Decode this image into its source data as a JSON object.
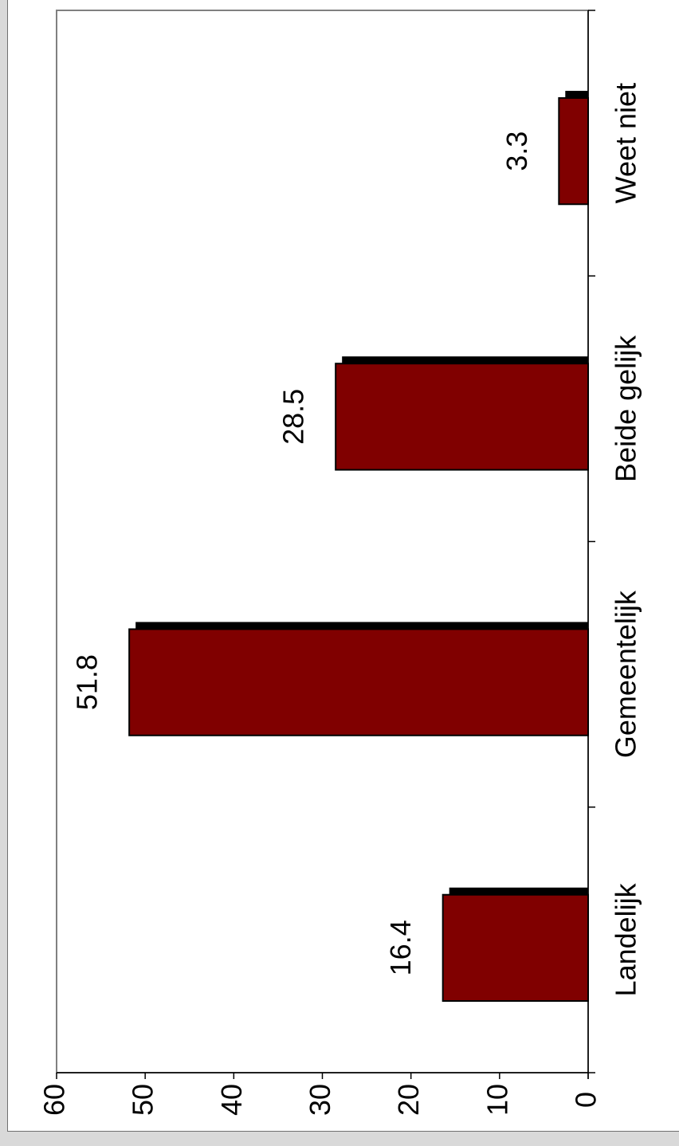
{
  "chart_data": {
    "type": "bar",
    "orientation": "rotated-90-clockwise",
    "categories": [
      "Landelijk",
      "Gemeentelijk",
      "Beide gelijk",
      "Weet niet"
    ],
    "values": [
      16.4,
      51.8,
      28.5,
      3.3
    ],
    "value_labels": [
      "16.4",
      "51.8",
      "28.5",
      "3.3"
    ],
    "ylim": [
      0,
      60
    ],
    "yticks": [
      "0",
      "10",
      "20",
      "30",
      "40",
      "50",
      "60"
    ],
    "title": "",
    "xlabel": "",
    "ylabel": "",
    "grid": false,
    "colors": {
      "bar": "#800000",
      "bar_shadow": "#000000",
      "plot_border": "#808080",
      "axis": "#000000"
    }
  }
}
